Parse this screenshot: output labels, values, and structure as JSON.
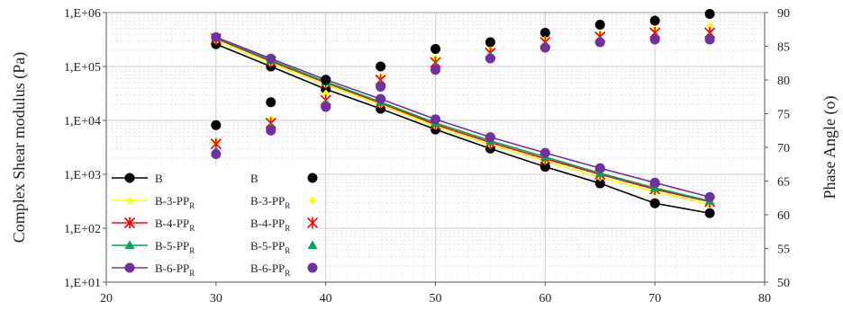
{
  "chart_data": {
    "type": "line",
    "title": "",
    "xlabel": "",
    "ylabel": "Complex  Shear modulus  (Pa)",
    "y2label": "Phase Angle  (o)",
    "xlim": [
      20,
      80
    ],
    "x_ticks": [
      20,
      30,
      40,
      50,
      60,
      70,
      80
    ],
    "ylim": [
      10,
      1000000
    ],
    "yscale": "log",
    "y_ticks": [
      "1,E+01",
      "1,E+02",
      "1,E+03",
      "1,E+04",
      "1,E+05",
      "1,E+06"
    ],
    "y2lim": [
      50,
      90
    ],
    "y2_ticks": [
      50,
      55,
      60,
      65,
      70,
      75,
      80,
      85,
      90
    ],
    "grid": true,
    "legend_placement": "bottom-left",
    "x": [
      30,
      35,
      40,
      45,
      50,
      55,
      60,
      65,
      70,
      75
    ],
    "series": [
      {
        "name": "B",
        "axis": "left",
        "style": "line",
        "marker": "circle",
        "color": "#000000",
        "values": [
          260000,
          100000,
          38000,
          16500,
          6800,
          3000,
          1380,
          680,
          290,
          190
        ]
      },
      {
        "name": "B",
        "axis": "right",
        "style": "points",
        "marker": "circle",
        "color": "#000000",
        "values": [
          73.3,
          76.7,
          80.0,
          82.0,
          84.6,
          85.6,
          87.0,
          88.2,
          88.8,
          89.8
        ]
      },
      {
        "name": "B-3-PP",
        "subscript": "R",
        "axis": "left",
        "style": "line",
        "marker": "diamond",
        "color": "#ffff00",
        "values": [
          300000,
          115000,
          46000,
          19500,
          7800,
          3500,
          1750,
          870,
          470,
          280
        ]
      },
      {
        "name": "B-3-PP",
        "subscript": "R",
        "axis": "right",
        "style": "points",
        "marker": "diamond",
        "color": "#ffff00",
        "values": [
          70.8,
          74.2,
          78.0,
          80.5,
          83.2,
          84.4,
          86.0,
          86.8,
          87.5,
          88.0
        ]
      },
      {
        "name": "B-4-PP",
        "subscript": "R",
        "axis": "left",
        "style": "line",
        "marker": "star",
        "color": "#ff0000",
        "values": [
          330000,
          125000,
          50000,
          21000,
          8400,
          3900,
          1950,
          1000,
          530,
          310
        ]
      },
      {
        "name": "B-4-PP",
        "subscript": "R",
        "axis": "right",
        "style": "points",
        "marker": "star",
        "color": "#ff0000",
        "values": [
          70.5,
          73.6,
          77.0,
          80.0,
          82.6,
          84.0,
          85.6,
          86.4,
          87.0,
          87.0
        ]
      },
      {
        "name": "B-5-PP",
        "subscript": "R",
        "axis": "left",
        "style": "line",
        "marker": "triangle",
        "color": "#00a651",
        "values": [
          340000,
          130000,
          52000,
          22000,
          9000,
          4200,
          2100,
          1050,
          560,
          320
        ]
      },
      {
        "name": "B-5-PP",
        "subscript": "R",
        "axis": "right",
        "style": "points",
        "marker": "triangle",
        "color": "#00a651",
        "values": [
          69.5,
          73.0,
          76.5,
          79.4,
          82.0,
          83.5,
          85.0,
          85.8,
          86.2,
          86.2
        ]
      },
      {
        "name": "B-6-PP",
        "subscript": "R",
        "axis": "left",
        "style": "line",
        "marker": "circle",
        "color": "#7030a0",
        "values": [
          350000,
          140000,
          57000,
          25000,
          10500,
          4900,
          2500,
          1300,
          700,
          380
        ]
      },
      {
        "name": "B-6-PP",
        "subscript": "R",
        "axis": "right",
        "style": "points",
        "marker": "circle",
        "color": "#7030a0",
        "values": [
          69.0,
          72.5,
          76.0,
          79.0,
          81.5,
          83.2,
          84.8,
          85.6,
          86.0,
          86.0
        ]
      }
    ]
  }
}
